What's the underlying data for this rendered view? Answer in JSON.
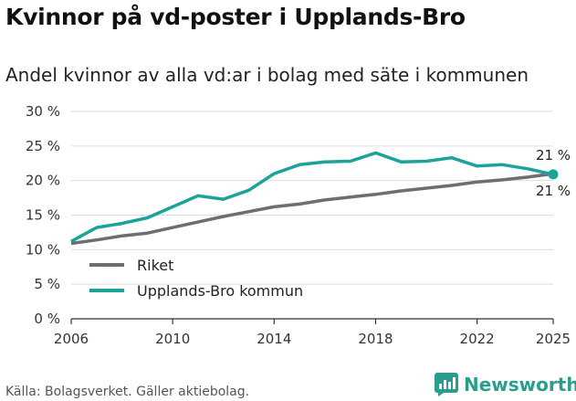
{
  "title": "Kvinnor på vd-poster i Upplands-Bro",
  "subtitle": "Andel kvinnor av alla vd:ar i bolag med säte i kommunen",
  "source": "Källa: Bolagsverket. Gäller aktiebolag.",
  "brand": {
    "name": "Newsworthy",
    "icon": "newsworthy-logo-icon"
  },
  "colors": {
    "riket": "#6e6c74",
    "kommun": "#1ba39a",
    "grid": "#dddddd",
    "axis": "#333333"
  },
  "chart_data": {
    "type": "line",
    "title": "Kvinnor på vd-poster i Upplands-Bro",
    "subtitle": "Andel kvinnor av alla vd:ar i bolag med säte i kommunen",
    "xlabel": "",
    "ylabel": "",
    "ylim": [
      0,
      30
    ],
    "xlim": [
      2006,
      2025
    ],
    "x_ticks": [
      2006,
      2010,
      2014,
      2018,
      2022,
      2025
    ],
    "y_ticks": [
      0,
      5,
      10,
      15,
      20,
      25,
      30
    ],
    "y_tick_labels": [
      "0 %",
      "5 %",
      "10 %",
      "15 %",
      "20 %",
      "25 %",
      "30 %"
    ],
    "grid": true,
    "legend_position": "bottom-left",
    "x": [
      2006,
      2007,
      2008,
      2009,
      2010,
      2011,
      2012,
      2013,
      2014,
      2015,
      2016,
      2017,
      2018,
      2019,
      2020,
      2021,
      2022,
      2023,
      2024,
      2025
    ],
    "series": [
      {
        "name": "Riket",
        "key": "riket",
        "values": [
          10.9,
          11.4,
          12.0,
          12.4,
          13.2,
          14.0,
          14.8,
          15.5,
          16.2,
          16.6,
          17.2,
          17.6,
          18.0,
          18.5,
          18.9,
          19.3,
          19.8,
          20.1,
          20.5,
          21.0
        ],
        "end_label": "21 %"
      },
      {
        "name": "Upplands-Bro kommun",
        "key": "kommun",
        "values": [
          11.2,
          13.2,
          13.8,
          14.6,
          16.2,
          17.8,
          17.3,
          18.6,
          21.0,
          22.3,
          22.7,
          22.8,
          24.0,
          22.7,
          22.8,
          23.3,
          22.1,
          22.3,
          21.7,
          20.9
        ],
        "end_label": "21 %"
      }
    ]
  }
}
